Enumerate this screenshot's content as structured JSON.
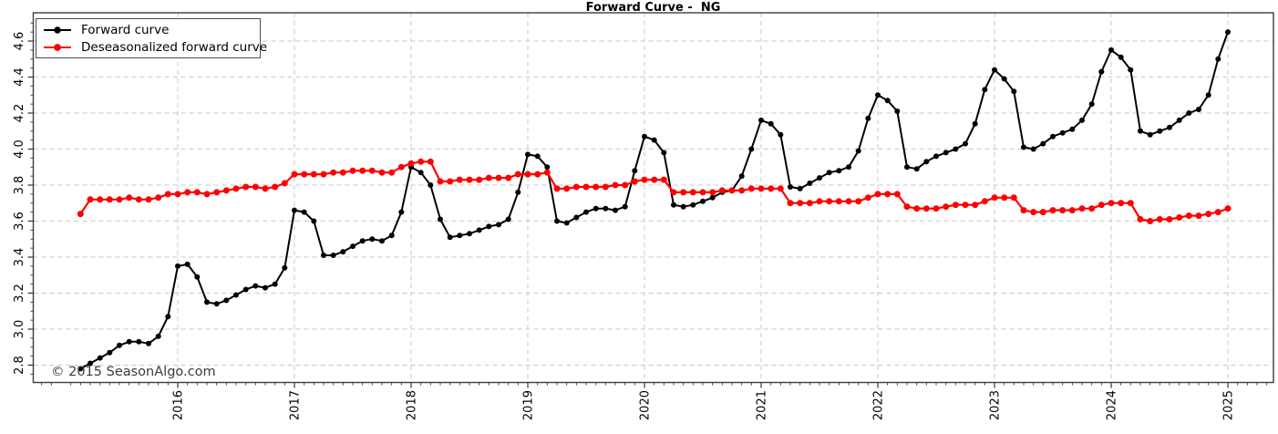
{
  "chart_data": {
    "type": "line",
    "title": "Forward Curve -  NG",
    "watermark": "© 2015 SeasonAlgo.com",
    "grid": true,
    "legend_position": "upper-left",
    "x_monthly": true,
    "x_first_point": "2015-03",
    "x_last_point": "2025-01",
    "x_tick_years": [
      "2016",
      "2017",
      "2018",
      "2019",
      "2020",
      "2021",
      "2022",
      "2023",
      "2024",
      "2025"
    ],
    "y_ticks": [
      2.8,
      3.0,
      3.2,
      3.4,
      3.6,
      3.8,
      4.0,
      4.2,
      4.4,
      4.6
    ],
    "ylim": [
      2.7,
      4.76
    ],
    "colors": {
      "grid": "#c8c8c8",
      "frame": "#3c3c3c",
      "tick": "#333333"
    },
    "series": [
      {
        "name": "Forward curve",
        "color": "#000000",
        "values": [
          2.78,
          2.81,
          2.84,
          2.87,
          2.91,
          2.93,
          2.93,
          2.92,
          2.96,
          3.07,
          3.35,
          3.36,
          3.29,
          3.15,
          3.14,
          3.16,
          3.19,
          3.22,
          3.24,
          3.23,
          3.25,
          3.34,
          3.66,
          3.65,
          3.6,
          3.41,
          3.41,
          3.43,
          3.46,
          3.49,
          3.5,
          3.49,
          3.52,
          3.65,
          3.9,
          3.87,
          3.8,
          3.61,
          3.51,
          3.52,
          3.53,
          3.55,
          3.57,
          3.58,
          3.61,
          3.76,
          3.97,
          3.96,
          3.9,
          3.6,
          3.59,
          3.62,
          3.65,
          3.67,
          3.67,
          3.66,
          3.68,
          3.88,
          4.07,
          4.05,
          3.98,
          3.69,
          3.68,
          3.69,
          3.71,
          3.73,
          3.76,
          3.77,
          3.85,
          4.0,
          4.16,
          4.14,
          4.08,
          3.79,
          3.78,
          3.81,
          3.84,
          3.87,
          3.88,
          3.9,
          3.99,
          4.17,
          4.3,
          4.27,
          4.21,
          3.9,
          3.89,
          3.93,
          3.96,
          3.98,
          4.0,
          4.03,
          4.14,
          4.33,
          4.44,
          4.39,
          4.32,
          4.01,
          4.0,
          4.03,
          4.07,
          4.09,
          4.11,
          4.16,
          4.25,
          4.43,
          4.55,
          4.51,
          4.44,
          4.1,
          4.08,
          4.1,
          4.12,
          4.16,
          4.2,
          4.22,
          4.3,
          4.5,
          4.65
        ]
      },
      {
        "name": "Deseasonalized forward curve",
        "color": "#fe0000",
        "values": [
          3.64,
          3.72,
          3.72,
          3.72,
          3.72,
          3.73,
          3.72,
          3.72,
          3.73,
          3.75,
          3.75,
          3.76,
          3.76,
          3.75,
          3.76,
          3.77,
          3.78,
          3.79,
          3.79,
          3.78,
          3.79,
          3.81,
          3.86,
          3.86,
          3.86,
          3.86,
          3.87,
          3.87,
          3.88,
          3.88,
          3.88,
          3.87,
          3.87,
          3.9,
          3.92,
          3.93,
          3.93,
          3.82,
          3.82,
          3.83,
          3.83,
          3.83,
          3.84,
          3.84,
          3.84,
          3.86,
          3.86,
          3.86,
          3.87,
          3.78,
          3.78,
          3.79,
          3.79,
          3.79,
          3.79,
          3.8,
          3.8,
          3.82,
          3.83,
          3.83,
          3.83,
          3.76,
          3.76,
          3.76,
          3.76,
          3.76,
          3.77,
          3.77,
          3.77,
          3.78,
          3.78,
          3.78,
          3.78,
          3.7,
          3.7,
          3.7,
          3.71,
          3.71,
          3.71,
          3.71,
          3.71,
          3.73,
          3.75,
          3.75,
          3.75,
          3.68,
          3.67,
          3.67,
          3.67,
          3.68,
          3.69,
          3.69,
          3.69,
          3.71,
          3.73,
          3.73,
          3.73,
          3.66,
          3.65,
          3.65,
          3.66,
          3.66,
          3.66,
          3.67,
          3.67,
          3.69,
          3.7,
          3.7,
          3.7,
          3.61,
          3.6,
          3.61,
          3.61,
          3.62,
          3.63,
          3.63,
          3.64,
          3.65,
          3.67
        ]
      }
    ]
  }
}
